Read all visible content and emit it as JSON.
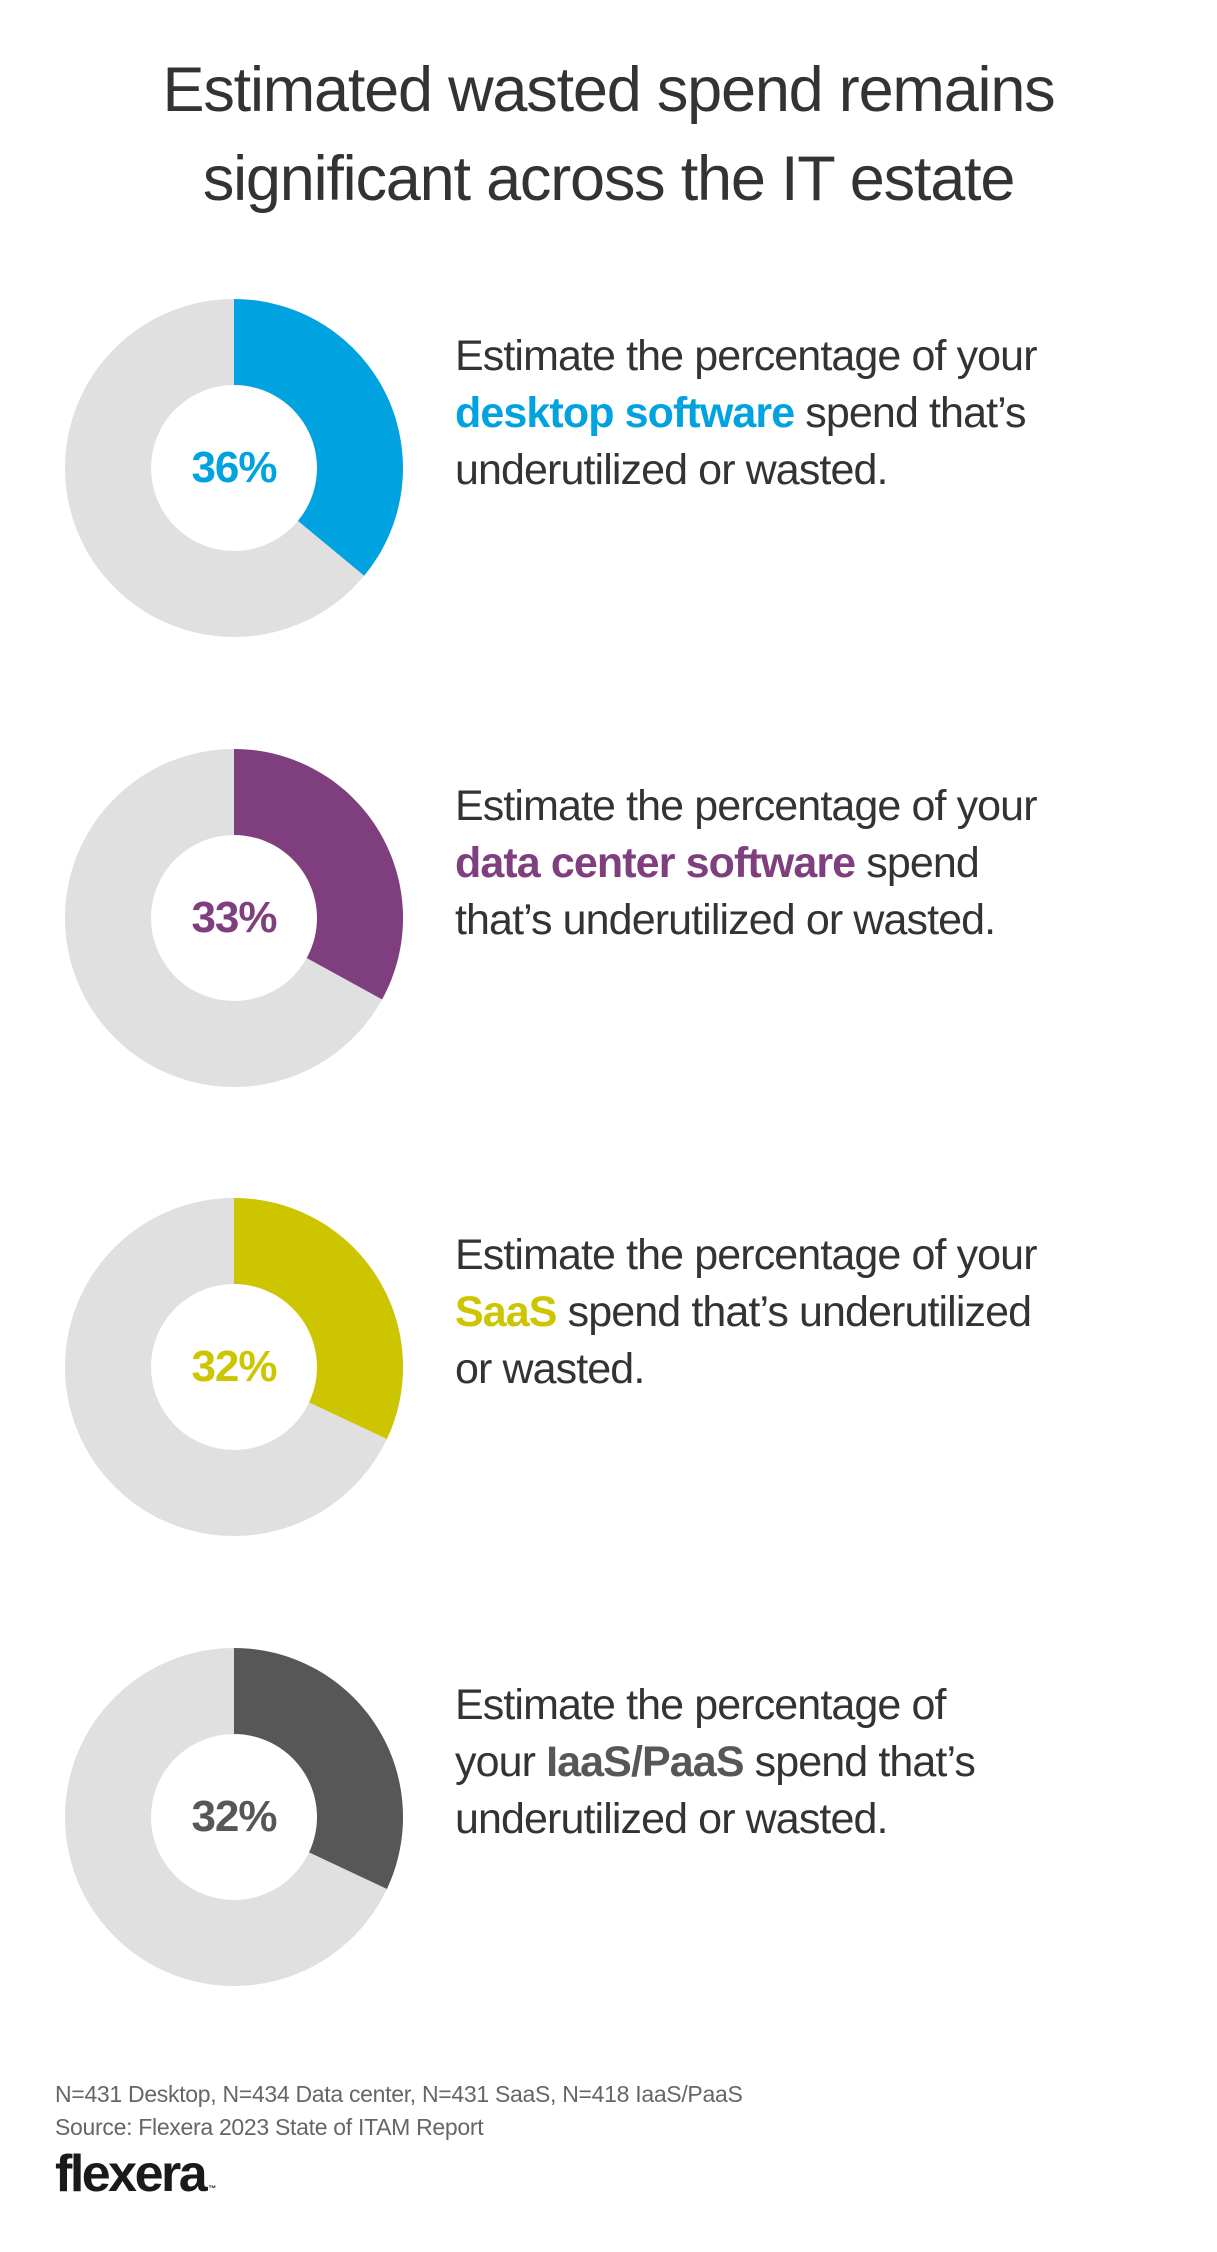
{
  "title": {
    "lines": [
      "Estimated wasted spend remains",
      "significant across the IT estate"
    ]
  },
  "chart_data": {
    "type": "pie",
    "subtype": "donut",
    "title": "Estimated wasted spend remains significant across the IT estate",
    "categories": [
      "Desktop software",
      "Data center software",
      "SaaS",
      "IaaS/PaaS"
    ],
    "values": [
      36,
      33,
      32,
      32
    ],
    "unit": "%",
    "remainder_color": "#E0E0E0",
    "series": [
      {
        "name": "Desktop software",
        "value": 36,
        "label": "36%",
        "color": "#00A3E0"
      },
      {
        "name": "Data center software",
        "value": 33,
        "label": "33%",
        "color": "#7F3F7E"
      },
      {
        "name": "SaaS",
        "value": 32,
        "label": "32%",
        "color": "#CCC500"
      },
      {
        "name": "IaaS/PaaS",
        "value": 32,
        "label": "32%",
        "color": "#575757"
      }
    ],
    "sample_sizes": {
      "Desktop": 431,
      "Data center": 434,
      "SaaS": 431,
      "IaaS/PaaS": 418
    },
    "source": "Flexera 2023 State of ITAM Report"
  },
  "items": [
    {
      "pct_label": "36%",
      "color": "#00A3E0",
      "lines": [
        {
          "pre": "Estimate the percentage of your",
          "hl": "",
          "post": ""
        },
        {
          "pre": "",
          "hl": "desktop software",
          "post": " spend that’s"
        },
        {
          "pre": "underutilized or wasted.",
          "hl": "",
          "post": ""
        }
      ]
    },
    {
      "pct_label": "33%",
      "color": "#7F3F7E",
      "lines": [
        {
          "pre": "Estimate the percentage of your",
          "hl": "",
          "post": ""
        },
        {
          "pre": "",
          "hl": "data center software",
          "post": " spend"
        },
        {
          "pre": "that’s underutilized or wasted.",
          "hl": "",
          "post": ""
        }
      ]
    },
    {
      "pct_label": "32%",
      "color": "#CCC500",
      "lines": [
        {
          "pre": "Estimate the percentage of your",
          "hl": "",
          "post": ""
        },
        {
          "pre": "",
          "hl": "SaaS",
          "post": " spend that’s underutilized"
        },
        {
          "pre": "or wasted.",
          "hl": "",
          "post": ""
        }
      ]
    },
    {
      "pct_label": "32%",
      "color": "#575757",
      "lines": [
        {
          "pre": "Estimate the percentage of",
          "hl": "",
          "post": ""
        },
        {
          "pre": "your ",
          "hl": "IaaS/PaaS",
          "post": " spend that’s"
        },
        {
          "pre": "underutilized or wasted.",
          "hl": "",
          "post": ""
        }
      ]
    }
  ],
  "footer": {
    "sample_note": "N=431 Desktop, N=434 Data center, N=431 SaaS, N=418 IaaS/PaaS",
    "source": "Source: Flexera 2023 State of ITAM Report"
  },
  "logo": {
    "text": "flexera",
    "tm": "™"
  }
}
